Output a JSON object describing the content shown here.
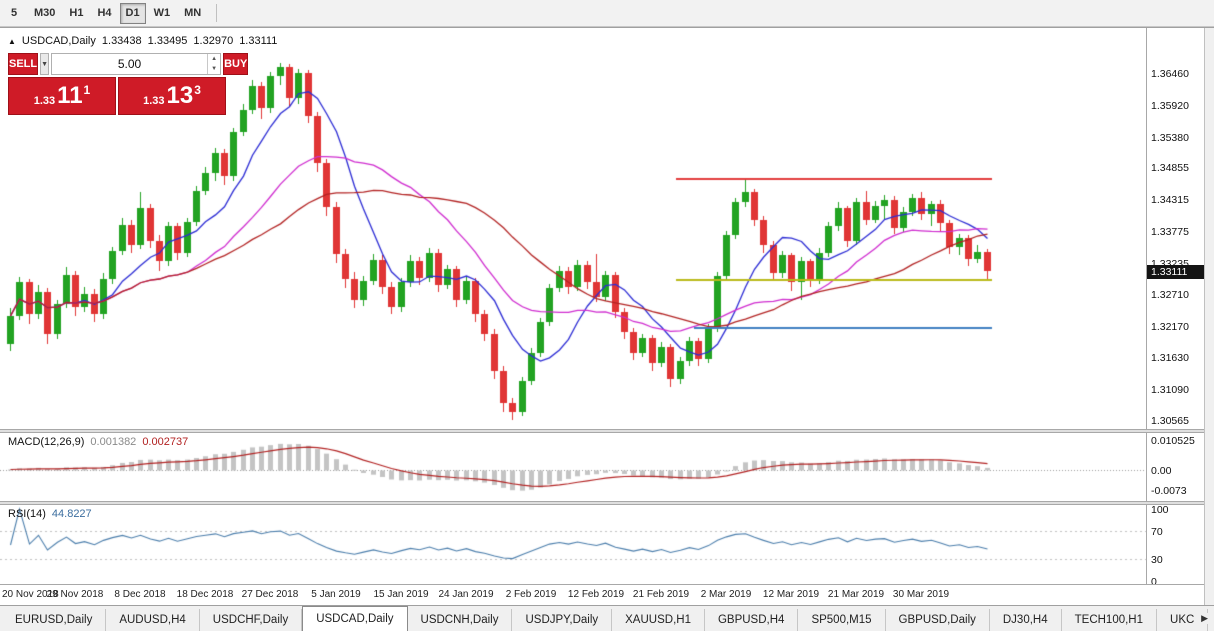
{
  "toolbar": {
    "timeframes": [
      {
        "label": "5",
        "active": false
      },
      {
        "label": "M30",
        "active": false
      },
      {
        "label": "H1",
        "active": false
      },
      {
        "label": "H4",
        "active": false
      },
      {
        "label": "D1",
        "active": true
      },
      {
        "label": "W1",
        "active": false
      },
      {
        "label": "MN",
        "active": false
      }
    ]
  },
  "icons": {
    "collapse": "▲",
    "dropdown": "▼",
    "spinner_up": "▲",
    "spinner_down": "▼",
    "tab_scroll_right": "▶"
  },
  "chart": {
    "symbol_title": "USDCAD,Daily",
    "open": "1.33438",
    "high": "1.33495",
    "low": "1.32970",
    "close": "1.33111"
  },
  "trade_panel": {
    "sell_label": "SELL",
    "buy_label": "BUY",
    "volume": "5.00",
    "sell_price": {
      "prefix": "1.33",
      "big": "11",
      "sup": "1"
    },
    "buy_price": {
      "prefix": "1.33",
      "big": "13",
      "sup": "3"
    }
  },
  "price_scale": {
    "ticks": [
      "1.36460",
      "1.35920",
      "1.35380",
      "1.34855",
      "1.34315",
      "1.33775",
      "1.33235",
      "1.32710",
      "1.32170",
      "1.31630",
      "1.31090",
      "1.30565"
    ],
    "current": "1.33111"
  },
  "macd_panel": {
    "label": "MACD(12,26,9)",
    "value_main": "0.001382",
    "value_signal": "0.002737",
    "scale": [
      "0.010525",
      "0.00",
      "-0.0073"
    ]
  },
  "rsi_panel": {
    "label": "RSI(14)",
    "value": "44.8227",
    "scale": [
      "100",
      "70",
      "30",
      "0"
    ]
  },
  "date_axis": [
    "20 Nov 2018",
    "29 Nov 2018",
    "8 Dec 2018",
    "18 Dec 2018",
    "27 Dec 2018",
    "5 Jan 2019",
    "15 Jan 2019",
    "24 Jan 2019",
    "2 Feb 2019",
    "12 Feb 2019",
    "21 Feb 2019",
    "2 Mar 2019",
    "12 Mar 2019",
    "21 Mar 2019",
    "30 Mar 2019"
  ],
  "tabs": {
    "items": [
      {
        "label": "EURUSD,Daily",
        "active": false
      },
      {
        "label": "AUDUSD,H4",
        "active": false
      },
      {
        "label": "USDCHF,Daily",
        "active": false
      },
      {
        "label": "USDCAD,Daily",
        "active": true
      },
      {
        "label": "USDCNH,Daily",
        "active": false
      },
      {
        "label": "USDJPY,Daily",
        "active": false
      },
      {
        "label": "XAUUSD,H1",
        "active": false
      },
      {
        "label": "GBPUSD,H4",
        "active": false
      },
      {
        "label": "SP500,M15",
        "active": false
      },
      {
        "label": "GBPUSD,Daily",
        "active": false
      },
      {
        "label": "DJ30,H4",
        "active": false
      },
      {
        "label": "TECH100,H1",
        "active": false
      },
      {
        "label": "UKC",
        "active": false
      }
    ]
  },
  "chart_data": {
    "type": "candlestick",
    "symbol": "USDCAD",
    "timeframe": "Daily",
    "label_every": 7,
    "x_labels": [
      "20 Nov 2018",
      "29 Nov 2018",
      "8 Dec 2018",
      "18 Dec 2018",
      "27 Dec 2018",
      "5 Jan 2019",
      "15 Jan 2019",
      "24 Jan 2019",
      "2 Feb 2019",
      "12 Feb 2019",
      "21 Feb 2019",
      "2 Mar 2019",
      "12 Mar 2019",
      "21 Mar 2019",
      "30 Mar 2019"
    ],
    "price_range": {
      "max": 1.3724,
      "min": 1.3043
    },
    "up_color": "#22a322",
    "down_color": "#e03535",
    "candles": [
      [
        1.3188,
        1.3248,
        1.3175,
        1.3235
      ],
      [
        1.3235,
        1.3301,
        1.3228,
        1.3292
      ],
      [
        1.3292,
        1.3298,
        1.3222,
        1.3238
      ],
      [
        1.3238,
        1.3288,
        1.323,
        1.3275
      ],
      [
        1.3275,
        1.3282,
        1.3188,
        1.3205
      ],
      [
        1.3205,
        1.3262,
        1.3195,
        1.3255
      ],
      [
        1.3255,
        1.3318,
        1.3248,
        1.3305
      ],
      [
        1.3305,
        1.3312,
        1.3235,
        1.325
      ],
      [
        1.325,
        1.3285,
        1.3242,
        1.3272
      ],
      [
        1.3272,
        1.328,
        1.3225,
        1.3238
      ],
      [
        1.3238,
        1.3308,
        1.323,
        1.3298
      ],
      [
        1.3298,
        1.3352,
        1.329,
        1.3345
      ],
      [
        1.3345,
        1.3402,
        1.3338,
        1.339
      ],
      [
        1.339,
        1.3398,
        1.3342,
        1.3355
      ],
      [
        1.3355,
        1.3445,
        1.3348,
        1.3418
      ],
      [
        1.3418,
        1.3425,
        1.335,
        1.3362
      ],
      [
        1.3362,
        1.3372,
        1.3312,
        1.3328
      ],
      [
        1.3328,
        1.3395,
        1.332,
        1.3388
      ],
      [
        1.3388,
        1.3392,
        1.333,
        1.3342
      ],
      [
        1.3342,
        1.3402,
        1.3335,
        1.3395
      ],
      [
        1.3395,
        1.3455,
        1.3388,
        1.3448
      ],
      [
        1.3448,
        1.3488,
        1.344,
        1.3478
      ],
      [
        1.3478,
        1.352,
        1.3465,
        1.3512
      ],
      [
        1.3512,
        1.3518,
        1.3458,
        1.3472
      ],
      [
        1.3472,
        1.3555,
        1.3465,
        1.3548
      ],
      [
        1.3548,
        1.3595,
        1.354,
        1.3585
      ],
      [
        1.3585,
        1.3635,
        1.3578,
        1.3625
      ],
      [
        1.3625,
        1.3632,
        1.357,
        1.3588
      ],
      [
        1.3588,
        1.365,
        1.358,
        1.3642
      ],
      [
        1.3642,
        1.3665,
        1.3628,
        1.3658
      ],
      [
        1.3658,
        1.3663,
        1.3592,
        1.3605
      ],
      [
        1.3605,
        1.3655,
        1.3595,
        1.3648
      ],
      [
        1.3648,
        1.3652,
        1.3562,
        1.3575
      ],
      [
        1.3575,
        1.3582,
        1.348,
        1.3495
      ],
      [
        1.3495,
        1.3502,
        1.3405,
        1.342
      ],
      [
        1.342,
        1.3428,
        1.3325,
        1.334
      ],
      [
        1.334,
        1.3348,
        1.3282,
        1.3298
      ],
      [
        1.3298,
        1.331,
        1.3248,
        1.3262
      ],
      [
        1.3262,
        1.3302,
        1.3252,
        1.3295
      ],
      [
        1.3295,
        1.334,
        1.3288,
        1.333
      ],
      [
        1.333,
        1.3338,
        1.3272,
        1.3285
      ],
      [
        1.3285,
        1.3292,
        1.3238,
        1.325
      ],
      [
        1.325,
        1.33,
        1.3242,
        1.3292
      ],
      [
        1.3292,
        1.3338,
        1.3285,
        1.3328
      ],
      [
        1.3328,
        1.3335,
        1.3288,
        1.33
      ],
      [
        1.33,
        1.335,
        1.3292,
        1.3342
      ],
      [
        1.3342,
        1.3348,
        1.3275,
        1.3288
      ],
      [
        1.3288,
        1.3322,
        1.328,
        1.3315
      ],
      [
        1.3315,
        1.332,
        1.325,
        1.3262
      ],
      [
        1.3262,
        1.3302,
        1.3255,
        1.3295
      ],
      [
        1.3295,
        1.33,
        1.3225,
        1.3238
      ],
      [
        1.3238,
        1.3245,
        1.3192,
        1.3205
      ],
      [
        1.3205,
        1.3212,
        1.3128,
        1.3142
      ],
      [
        1.3142,
        1.315,
        1.3072,
        1.3088
      ],
      [
        1.3088,
        1.3095,
        1.3058,
        1.3072
      ],
      [
        1.3072,
        1.3132,
        1.3065,
        1.3125
      ],
      [
        1.3125,
        1.318,
        1.3118,
        1.3172
      ],
      [
        1.3172,
        1.3232,
        1.3165,
        1.3225
      ],
      [
        1.3225,
        1.329,
        1.3218,
        1.3282
      ],
      [
        1.3282,
        1.332,
        1.3275,
        1.3312
      ],
      [
        1.3312,
        1.3318,
        1.3272,
        1.3285
      ],
      [
        1.3285,
        1.333,
        1.3278,
        1.3322
      ],
      [
        1.3322,
        1.3328,
        1.328,
        1.3292
      ],
      [
        1.3292,
        1.334,
        1.3258,
        1.3268
      ],
      [
        1.3268,
        1.3312,
        1.326,
        1.3305
      ],
      [
        1.3305,
        1.331,
        1.3232,
        1.3242
      ],
      [
        1.3242,
        1.3248,
        1.3195,
        1.3208
      ],
      [
        1.3208,
        1.3215,
        1.316,
        1.3172
      ],
      [
        1.3172,
        1.3205,
        1.3165,
        1.3198
      ],
      [
        1.3198,
        1.3202,
        1.3142,
        1.3155
      ],
      [
        1.3155,
        1.319,
        1.3148,
        1.3182
      ],
      [
        1.3182,
        1.3188,
        1.3115,
        1.3128
      ],
      [
        1.3128,
        1.3165,
        1.312,
        1.3158
      ],
      [
        1.3158,
        1.32,
        1.315,
        1.3192
      ],
      [
        1.3192,
        1.3198,
        1.315,
        1.3162
      ],
      [
        1.3162,
        1.3222,
        1.3155,
        1.3215
      ],
      [
        1.3215,
        1.331,
        1.3208,
        1.3302
      ],
      [
        1.3302,
        1.338,
        1.3295,
        1.3372
      ],
      [
        1.3372,
        1.3436,
        1.3365,
        1.3428
      ],
      [
        1.3428,
        1.3467,
        1.342,
        1.3445
      ],
      [
        1.3445,
        1.345,
        1.3388,
        1.3398
      ],
      [
        1.3398,
        1.3405,
        1.3342,
        1.3355
      ],
      [
        1.3355,
        1.3362,
        1.3295,
        1.3308
      ],
      [
        1.3308,
        1.3345,
        1.33,
        1.3338
      ],
      [
        1.3338,
        1.3342,
        1.3278,
        1.3292
      ],
      [
        1.3292,
        1.3335,
        1.3262,
        1.3328
      ],
      [
        1.3328,
        1.3332,
        1.3285,
        1.3298
      ],
      [
        1.3298,
        1.335,
        1.329,
        1.3342
      ],
      [
        1.3342,
        1.3395,
        1.3335,
        1.3388
      ],
      [
        1.3388,
        1.3428,
        1.338,
        1.3418
      ],
      [
        1.3418,
        1.3422,
        1.3352,
        1.3362
      ],
      [
        1.3362,
        1.3436,
        1.3355,
        1.3428
      ],
      [
        1.3428,
        1.3448,
        1.339,
        1.3398
      ],
      [
        1.3398,
        1.343,
        1.3392,
        1.3422
      ],
      [
        1.3422,
        1.344,
        1.34,
        1.3432
      ],
      [
        1.3432,
        1.3438,
        1.3375,
        1.3385
      ],
      [
        1.3385,
        1.342,
        1.3378,
        1.3412
      ],
      [
        1.3412,
        1.3442,
        1.3405,
        1.3435
      ],
      [
        1.3435,
        1.3445,
        1.3398,
        1.3408
      ],
      [
        1.3408,
        1.343,
        1.3388,
        1.3425
      ],
      [
        1.3425,
        1.3432,
        1.338,
        1.3392
      ],
      [
        1.3392,
        1.3398,
        1.334,
        1.3352
      ],
      [
        1.3352,
        1.3375,
        1.3338,
        1.3368
      ],
      [
        1.3368,
        1.3372,
        1.332,
        1.3332
      ],
      [
        1.3332,
        1.3355,
        1.3325,
        1.3344
      ],
      [
        1.33438,
        1.33495,
        1.3297,
        1.33111
      ]
    ],
    "moving_averages": [
      {
        "period": 8,
        "color": "#2b2bd4"
      },
      {
        "period": 20,
        "color": "#cf2bcf"
      },
      {
        "period": 30,
        "color": "#b22222"
      }
    ],
    "hlines": [
      {
        "price": 1.347,
        "color": "#e23b3b",
        "from_index": 72
      },
      {
        "price": 1.3297,
        "color": "#b9b918",
        "from_index": 72
      },
      {
        "price": 1.3217,
        "color": "#3f7fc1",
        "from_index": 74
      }
    ],
    "macd": {
      "fast": 12,
      "slow": 26,
      "signal": 9,
      "range": {
        "max": 0.01302,
        "min": -0.01122
      },
      "histogram_color": "#c4c4c4",
      "signal_color": "#b22222",
      "last_values": {
        "macd": 0.001382,
        "signal": 0.002737
      }
    },
    "rsi": {
      "period": 14,
      "range": {
        "max": 105.56,
        "min": -4.17
      },
      "color": "#4a7dab",
      "levels": [
        70,
        30
      ],
      "last_value": 44.8227
    }
  }
}
